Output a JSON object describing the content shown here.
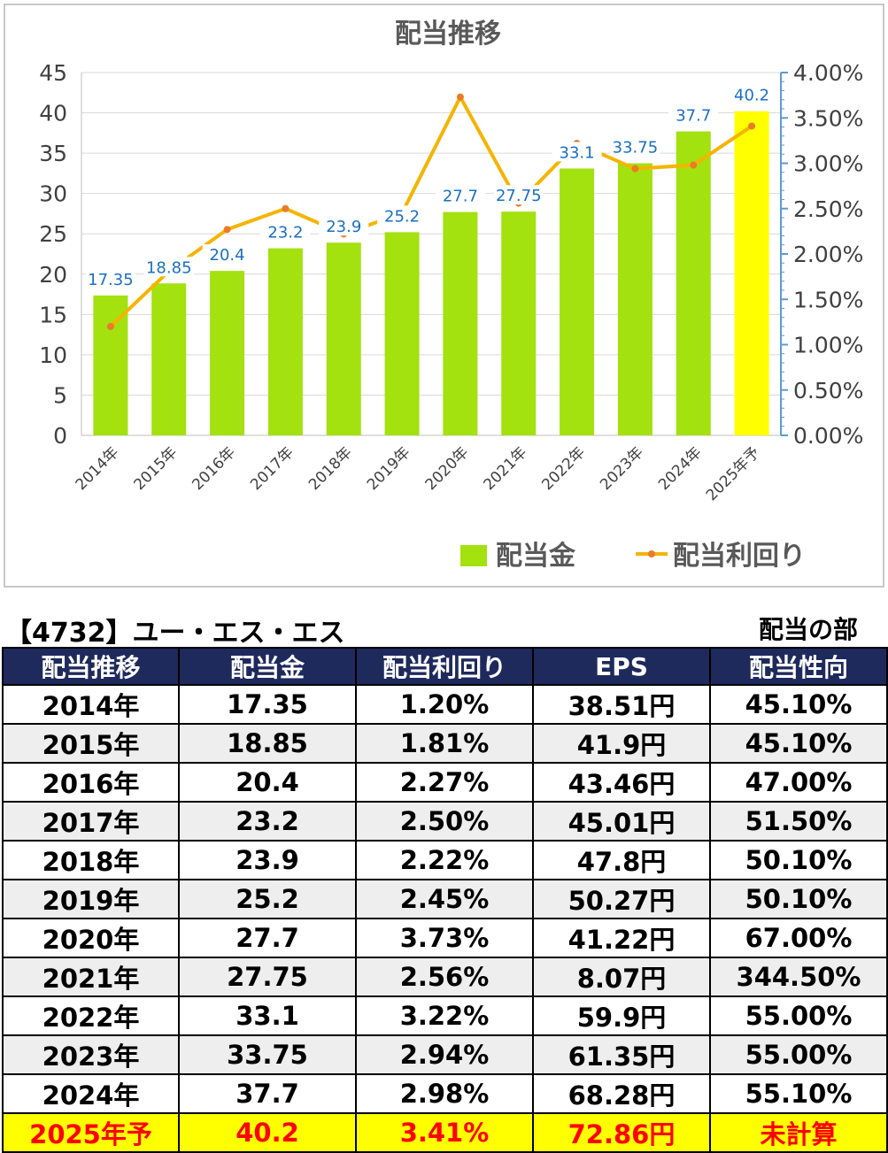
{
  "chart_data": {
    "type": "bar",
    "title": "配当推移",
    "categories": [
      "2014年",
      "2015年",
      "2016年",
      "2017年",
      "2018年",
      "2019年",
      "2020年",
      "2021年",
      "2022年",
      "2023年",
      "2024年",
      "2025年予"
    ],
    "series": [
      {
        "name": "配当金",
        "type": "bar",
        "axis": "left",
        "values": [
          17.35,
          18.85,
          20.4,
          23.2,
          23.9,
          25.2,
          27.7,
          27.75,
          33.1,
          33.75,
          37.7,
          40.2
        ],
        "data_labels": [
          "17.35",
          "18.85",
          "20.4",
          "23.2",
          "23.9",
          "25.2",
          "27.7",
          "27.75",
          "33.1",
          "33.75",
          "37.7",
          "40.2"
        ],
        "color": "#a3e10f",
        "highlight_last_color": "#ffff00"
      },
      {
        "name": "配当利回り",
        "type": "line",
        "axis": "right",
        "values": [
          1.2,
          1.81,
          2.27,
          2.5,
          2.22,
          2.45,
          3.73,
          2.56,
          3.22,
          2.94,
          2.98,
          3.41
        ],
        "color": "#f5b400",
        "marker_color": "#ea7b28"
      }
    ],
    "y_left": {
      "min": 0,
      "max": 45,
      "step": 5,
      "ticks": [
        "0",
        "5",
        "10",
        "15",
        "20",
        "25",
        "30",
        "35",
        "40",
        "45"
      ]
    },
    "y_right": {
      "min": 0,
      "max": 4,
      "step": 0.5,
      "ticks": [
        "0.00%",
        "0.50%",
        "1.00%",
        "1.50%",
        "2.00%",
        "2.50%",
        "3.00%",
        "3.50%",
        "4.00%"
      ]
    },
    "grid": true,
    "legend_position": "bottom-right",
    "label_color": "#1a6fc4"
  },
  "stock_title": "【4732】ユー・エス・エス",
  "section_label": "配当の部",
  "table": {
    "headers": [
      "配当推移",
      "配当金",
      "配当利回り",
      "EPS",
      "配当性向"
    ],
    "rows": [
      [
        "2014年",
        "17.35",
        "1.20%",
        "38.51円",
        "45.10%"
      ],
      [
        "2015年",
        "18.85",
        "1.81%",
        "41.9円",
        "45.10%"
      ],
      [
        "2016年",
        "20.4",
        "2.27%",
        "43.46円",
        "47.00%"
      ],
      [
        "2017年",
        "23.2",
        "2.50%",
        "45.01円",
        "51.50%"
      ],
      [
        "2018年",
        "23.9",
        "2.22%",
        "47.8円",
        "50.10%"
      ],
      [
        "2019年",
        "25.2",
        "2.45%",
        "50.27円",
        "50.10%"
      ],
      [
        "2020年",
        "27.7",
        "3.73%",
        "41.22円",
        "67.00%"
      ],
      [
        "2021年",
        "27.75",
        "2.56%",
        "8.07円",
        "344.50%"
      ],
      [
        "2022年",
        "33.1",
        "3.22%",
        "59.9円",
        "55.00%"
      ],
      [
        "2023年",
        "33.75",
        "2.94%",
        "61.35円",
        "55.00%"
      ],
      [
        "2024年",
        "37.7",
        "2.98%",
        "68.28円",
        "55.10%"
      ],
      [
        "2025年予",
        "40.2",
        "3.41%",
        "72.86円",
        "未計算"
      ]
    ],
    "header_color": "#1f2a5c",
    "forecast_bg": "#ffff00",
    "forecast_text": "#ff0000"
  }
}
